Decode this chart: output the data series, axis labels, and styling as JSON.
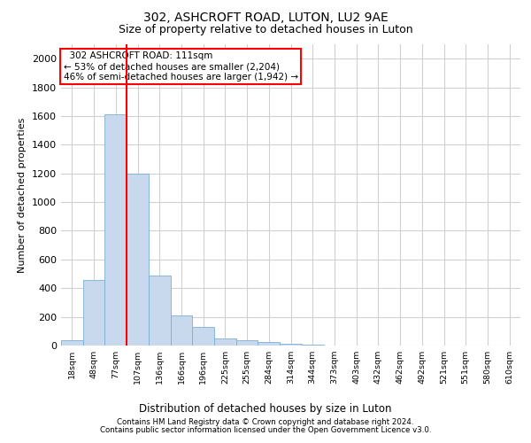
{
  "title1": "302, ASHCROFT ROAD, LUTON, LU2 9AE",
  "title2": "Size of property relative to detached houses in Luton",
  "xlabel": "Distribution of detached houses by size in Luton",
  "ylabel": "Number of detached properties",
  "footer1": "Contains HM Land Registry data © Crown copyright and database right 2024.",
  "footer2": "Contains public sector information licensed under the Open Government Licence v3.0.",
  "annotation_line1": "  302 ASHCROFT ROAD: 111sqm  ",
  "annotation_line2": "← 53% of detached houses are smaller (2,204)",
  "annotation_line3": "46% of semi-detached houses are larger (1,942) →",
  "bar_labels": [
    "18sqm",
    "48sqm",
    "77sqm",
    "107sqm",
    "136sqm",
    "166sqm",
    "196sqm",
    "225sqm",
    "255sqm",
    "284sqm",
    "314sqm",
    "344sqm",
    "373sqm",
    "403sqm",
    "432sqm",
    "462sqm",
    "492sqm",
    "521sqm",
    "551sqm",
    "580sqm",
    "610sqm"
  ],
  "bar_values": [
    35,
    460,
    1610,
    1200,
    490,
    210,
    130,
    50,
    40,
    25,
    15,
    5,
    0,
    0,
    0,
    0,
    0,
    0,
    0,
    0,
    0
  ],
  "bar_color": "#c8d9ee",
  "bar_edge_color": "#7bafd4",
  "vline_color": "red",
  "ylim": [
    0,
    2100
  ],
  "yticks": [
    0,
    200,
    400,
    600,
    800,
    1000,
    1200,
    1400,
    1600,
    1800,
    2000
  ],
  "annotation_box_color": "red",
  "grid_color": "#d0d0d0",
  "title1_fontsize": 10,
  "title2_fontsize": 9
}
